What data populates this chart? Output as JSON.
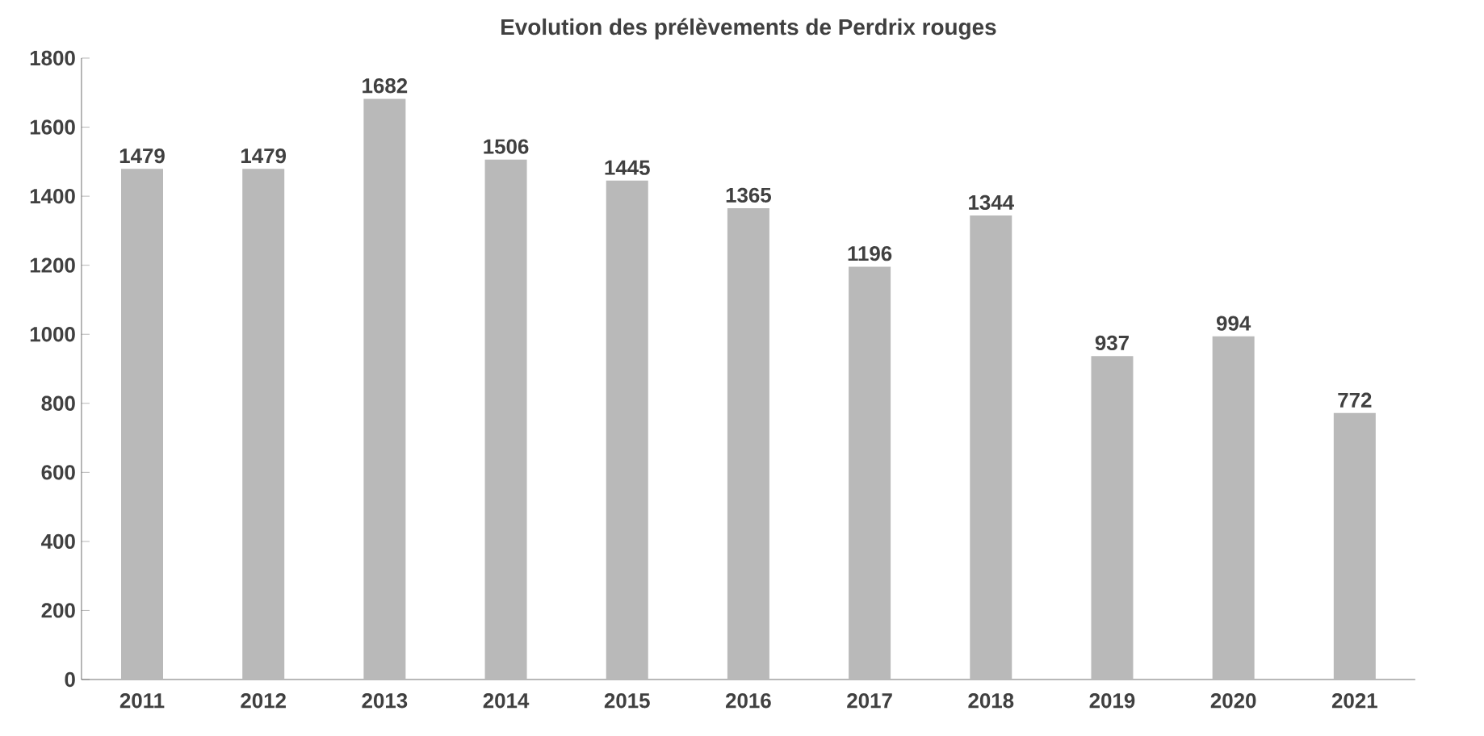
{
  "chart_data": {
    "type": "bar",
    "title": "Evolution des prélèvements de Perdrix rouges",
    "categories": [
      "2011",
      "2012",
      "2013",
      "2014",
      "2015",
      "2016",
      "2017",
      "2018",
      "2019",
      "2020",
      "2021"
    ],
    "values": [
      1479,
      1479,
      1682,
      1506,
      1445,
      1365,
      1196,
      1344,
      937,
      994,
      772
    ],
    "color": "#b9b9b9",
    "data_labels": true,
    "grid": false,
    "ylim": [
      0,
      1800
    ],
    "yticks": [
      0,
      200,
      400,
      600,
      800,
      1000,
      1200,
      1400,
      1600,
      1800
    ]
  }
}
